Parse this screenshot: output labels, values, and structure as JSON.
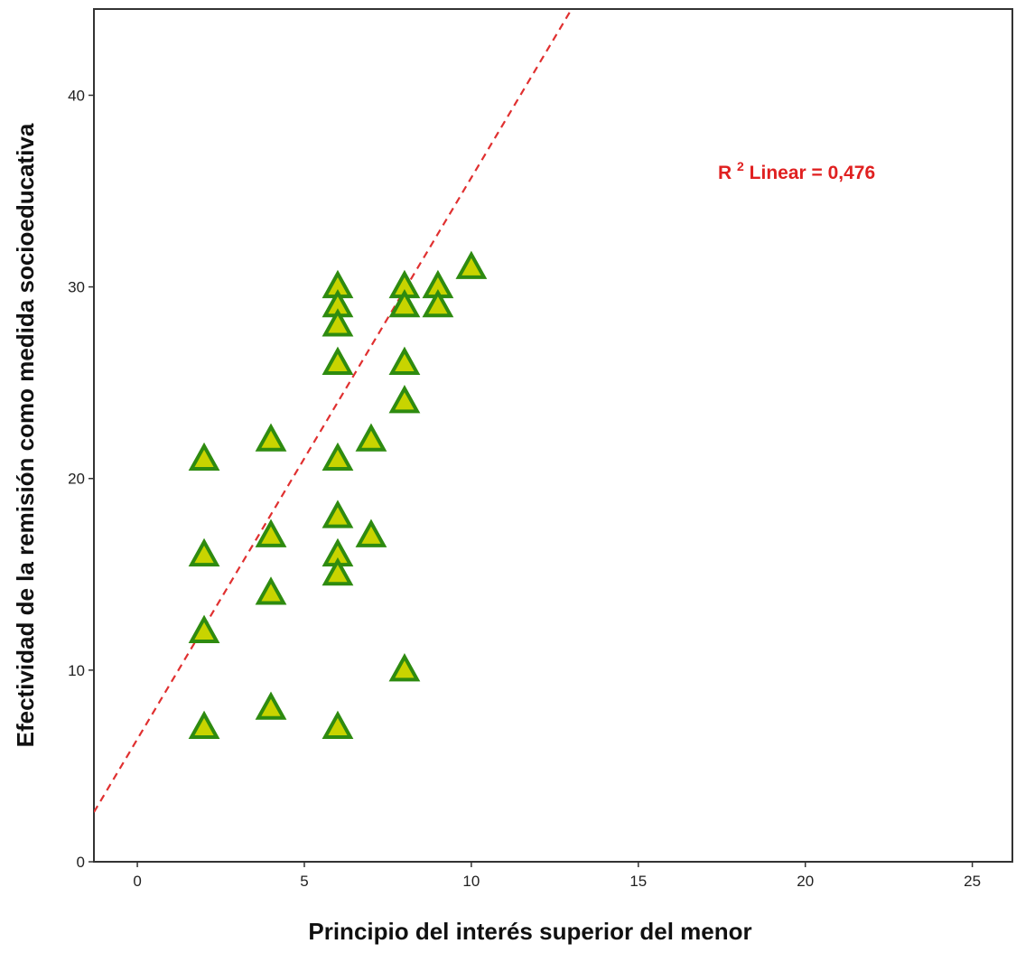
{
  "chart_data": {
    "type": "scatter",
    "xlabel": "Principio del interés superior del menor",
    "ylabel": "Efectividad de la remisión como medida socioeducativa",
    "xlim": [
      -1.3,
      26.2
    ],
    "ylim": [
      0,
      44.5
    ],
    "x_ticks": [
      "0",
      "5",
      "10",
      "15",
      "20",
      "25"
    ],
    "y_ticks": [
      "0",
      "10",
      "20",
      "30",
      "40"
    ],
    "grid": false,
    "marker": {
      "shape": "triangle",
      "fill_color": "#c8d400",
      "edge_color": "#2e8b10"
    },
    "points": [
      {
        "x": 2,
        "y": 21
      },
      {
        "x": 2,
        "y": 16
      },
      {
        "x": 2,
        "y": 12
      },
      {
        "x": 2,
        "y": 7
      },
      {
        "x": 4,
        "y": 22
      },
      {
        "x": 4,
        "y": 17
      },
      {
        "x": 4,
        "y": 14
      },
      {
        "x": 4,
        "y": 8
      },
      {
        "x": 6,
        "y": 30
      },
      {
        "x": 6,
        "y": 29
      },
      {
        "x": 6,
        "y": 28
      },
      {
        "x": 6,
        "y": 26
      },
      {
        "x": 6,
        "y": 21
      },
      {
        "x": 6,
        "y": 18
      },
      {
        "x": 6,
        "y": 16
      },
      {
        "x": 6,
        "y": 15
      },
      {
        "x": 6,
        "y": 7
      },
      {
        "x": 7,
        "y": 22
      },
      {
        "x": 7,
        "y": 17
      },
      {
        "x": 8,
        "y": 30
      },
      {
        "x": 8,
        "y": 29
      },
      {
        "x": 8,
        "y": 26
      },
      {
        "x": 8,
        "y": 24
      },
      {
        "x": 8,
        "y": 10
      },
      {
        "x": 9,
        "y": 30
      },
      {
        "x": 9,
        "y": 29
      },
      {
        "x": 10,
        "y": 31
      }
    ],
    "fit_line": {
      "style": "dashed",
      "color": "#e03030",
      "intercept": 6.4,
      "slope": 2.93
    },
    "annotation": {
      "prefix": "R",
      "superscript": "2",
      "text": " Linear = 0,476",
      "color": "#e02020"
    }
  }
}
